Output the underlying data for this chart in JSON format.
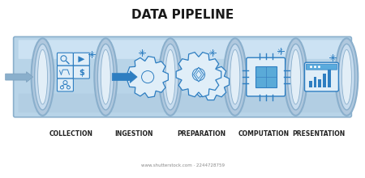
{
  "title": "DATA PIPELINE",
  "title_fontsize": 11,
  "title_fontweight": "bold",
  "stages": [
    "COLLECTION",
    "INGESTION",
    "PREPARATION",
    "COMPUTATION",
    "PRESENTATION"
  ],
  "bg_color": "#ffffff",
  "pipe_fill": "#b8d4e8",
  "pipe_stroke": "#8aafcc",
  "pipe_top_fill": "#d0e5f5",
  "ring_outer_fill": "#b0c8de",
  "ring_outer_stroke": "#8aafcc",
  "ring_mid_fill": "#c8dcee",
  "ring_mid_stroke": "#8aafcc",
  "ring_inner_fill": "#e2eef7",
  "icon_color": "#2e7ec1",
  "icon_light": "#5aabdd",
  "icon_bg": "#e0eef8",
  "label_color": "#222222",
  "label_fontsize": 5.5,
  "watermark": "www.shutterstock.com · 2244728759"
}
